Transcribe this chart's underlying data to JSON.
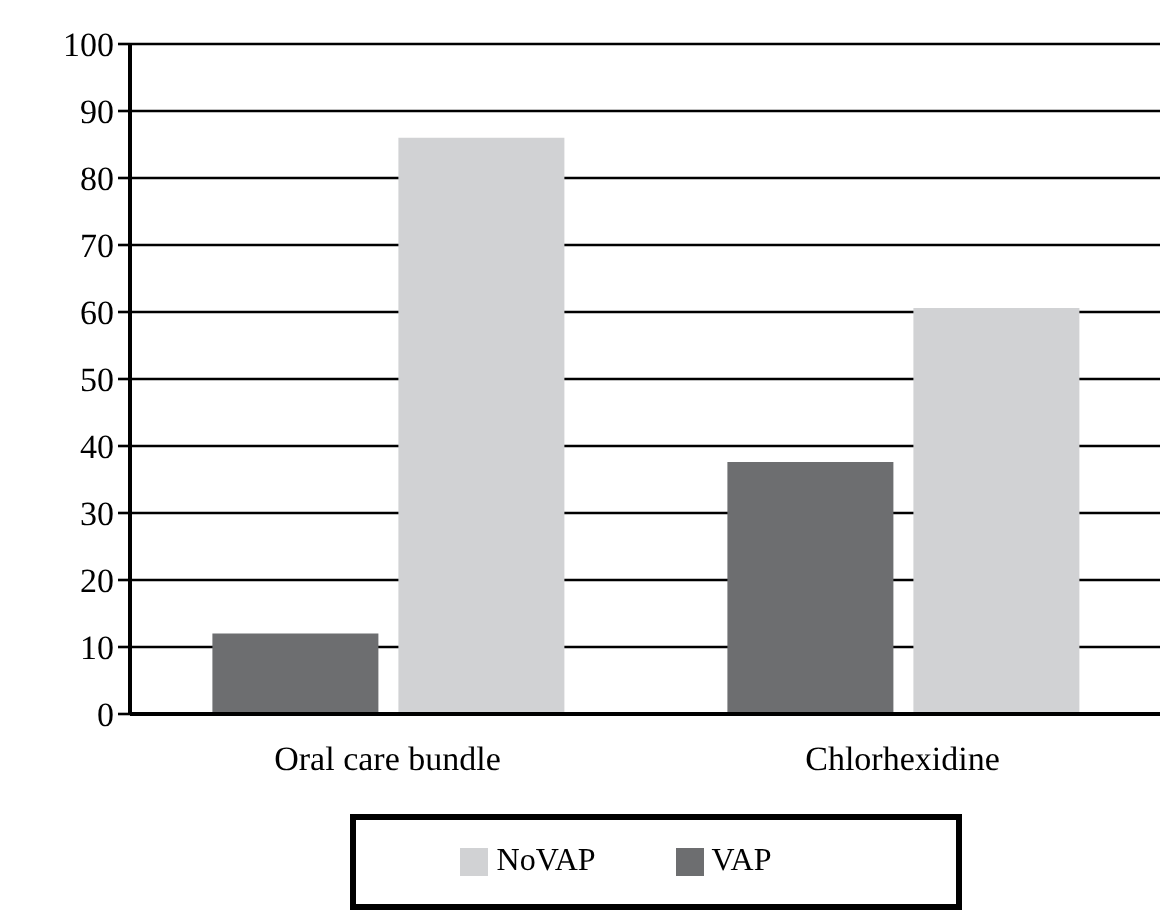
{
  "chart_data": {
    "type": "bar",
    "categories": [
      "Oral care bundle",
      "Chlorhexidine"
    ],
    "series": [
      {
        "name": "VAP",
        "color": "#6d6e70",
        "values": [
          12,
          37.6
        ]
      },
      {
        "name": "NoVAP",
        "color": "#d1d2d4",
        "values": [
          86,
          60.6
        ]
      }
    ],
    "ylim": [
      0,
      100
    ],
    "yticks": [
      0,
      10,
      20,
      30,
      40,
      50,
      60,
      70,
      80,
      90,
      100
    ],
    "grid": "y",
    "legend": "bottom"
  }
}
